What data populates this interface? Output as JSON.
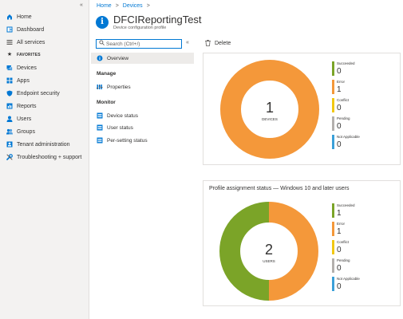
{
  "nav": {
    "collapse_label": "«",
    "items": [
      {
        "name": "home",
        "label": "Home",
        "icon": "home-icon"
      },
      {
        "name": "dashboard",
        "label": "Dashboard",
        "icon": "dashboard-icon"
      },
      {
        "name": "all-services",
        "label": "All services",
        "icon": "list-icon"
      },
      {
        "name": "favorites",
        "label": "FAVORITES",
        "icon": "star-icon"
      },
      {
        "name": "devices",
        "label": "Devices",
        "icon": "devices-icon"
      },
      {
        "name": "apps",
        "label": "Apps",
        "icon": "apps-icon"
      },
      {
        "name": "endpoint-security",
        "label": "Endpoint security",
        "icon": "shield-icon"
      },
      {
        "name": "reports",
        "label": "Reports",
        "icon": "reports-icon"
      },
      {
        "name": "users",
        "label": "Users",
        "icon": "user-icon"
      },
      {
        "name": "groups",
        "label": "Groups",
        "icon": "groups-icon"
      },
      {
        "name": "tenant-administration",
        "label": "Tenant administration",
        "icon": "tenant-icon"
      },
      {
        "name": "troubleshooting",
        "label": "Troubleshooting + support",
        "icon": "wrench-icon"
      }
    ]
  },
  "breadcrumb": {
    "home": "Home",
    "devices": "Devices",
    "sep": ">"
  },
  "header": {
    "title": "DFCIReportingTest",
    "subtitle": "Device configuration profile",
    "info_glyph": "i"
  },
  "menu": {
    "search_placeholder": "Search (Ctrl+/)",
    "collapse_label": "«",
    "overview": "Overview",
    "manage_heading": "Manage",
    "properties": "Properties",
    "monitor_heading": "Monitor",
    "device_status": "Device status",
    "user_status": "User status",
    "per_setting_status": "Per-setting status"
  },
  "commands": {
    "delete": "Delete"
  },
  "colors": {
    "succeeded": "#7ba428",
    "error": "#f4983a",
    "conflict": "#f2c811",
    "pending": "#b3b0ad",
    "not_applicable": "#3ba0d8",
    "accent": "#0078d4"
  },
  "devices_card": {
    "title": "",
    "total": "1",
    "caption": "DEVICES",
    "legend": [
      {
        "label": "Succeeded",
        "value": "0",
        "color": "#7ba428"
      },
      {
        "label": "Error",
        "value": "1",
        "color": "#f4983a"
      },
      {
        "label": "Conflict",
        "value": "0",
        "color": "#f2c811"
      },
      {
        "label": "Pending",
        "value": "0",
        "color": "#b3b0ad"
      },
      {
        "label": "Not Applicable",
        "value": "0",
        "color": "#3ba0d8"
      }
    ]
  },
  "users_card": {
    "title": "Profile assignment status — Windows 10 and later users",
    "total": "2",
    "caption": "USERS",
    "legend": [
      {
        "label": "Succeeded",
        "value": "1",
        "color": "#7ba428"
      },
      {
        "label": "Error",
        "value": "1",
        "color": "#f4983a"
      },
      {
        "label": "Conflict",
        "value": "0",
        "color": "#f2c811"
      },
      {
        "label": "Pending",
        "value": "0",
        "color": "#b3b0ad"
      },
      {
        "label": "Not Applicable",
        "value": "0",
        "color": "#3ba0d8"
      }
    ]
  }
}
